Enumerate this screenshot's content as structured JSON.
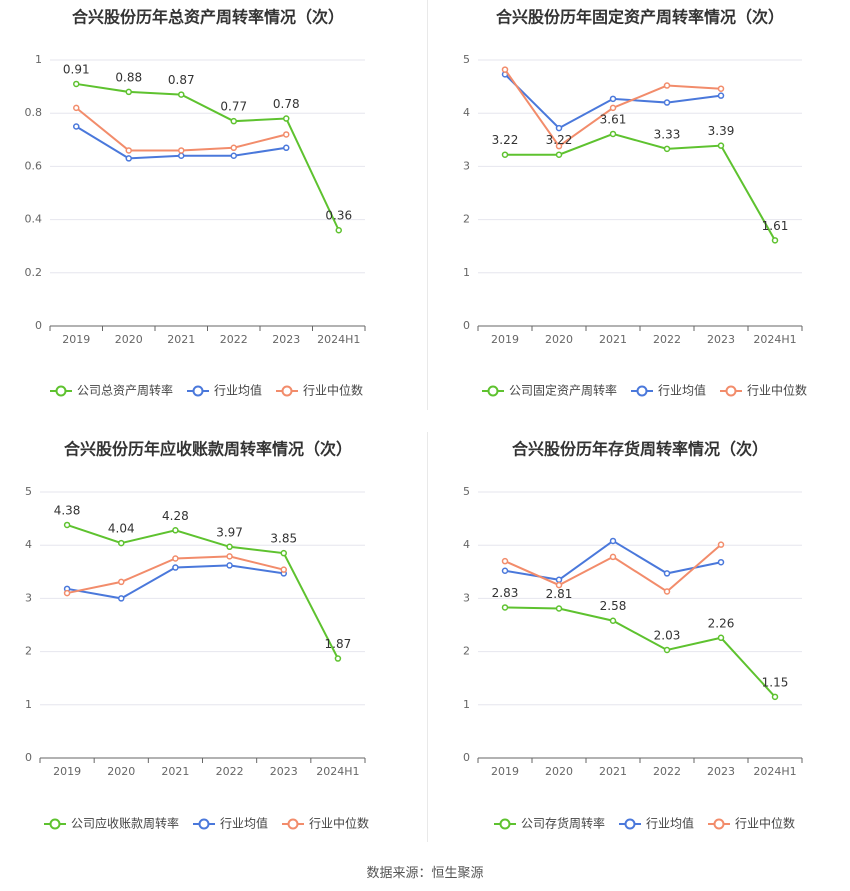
{
  "source_label": "数据来源：恒生聚源",
  "colors": {
    "company": "#5ec22f",
    "avg": "#4a78db",
    "median": "#f28c6b"
  },
  "chart_data": [
    {
      "type": "line",
      "title": "合兴股份历年总资产周转率情况（次）",
      "categories": [
        "2019",
        "2020",
        "2021",
        "2022",
        "2023",
        "2024H1"
      ],
      "ylim": [
        0,
        1
      ],
      "yticks": [
        "0",
        "0.2",
        "0.4",
        "0.6",
        "0.8",
        "1"
      ],
      "ytick_values": [
        0,
        0.2,
        0.4,
        0.6,
        0.8,
        1
      ],
      "series": [
        {
          "name": "公司总资产周转率",
          "role": "company",
          "values": [
            0.91,
            0.88,
            0.87,
            0.77,
            0.78,
            0.36
          ],
          "labels": [
            "0.91",
            "0.88",
            "0.87",
            "0.77",
            "0.78",
            "0.36"
          ]
        },
        {
          "name": "行业均值",
          "role": "avg",
          "values": [
            0.75,
            0.63,
            0.64,
            0.64,
            0.67,
            null
          ]
        },
        {
          "name": "行业中位数",
          "role": "median",
          "values": [
            0.82,
            0.66,
            0.66,
            0.67,
            0.72,
            null
          ]
        }
      ]
    },
    {
      "type": "line",
      "title": "合兴股份历年固定资产周转率情况（次）",
      "categories": [
        "2019",
        "2020",
        "2021",
        "2022",
        "2023",
        "2024H1"
      ],
      "ylim": [
        0,
        5
      ],
      "yticks": [
        "0",
        "1",
        "2",
        "3",
        "4",
        "5"
      ],
      "ytick_values": [
        0,
        1,
        2,
        3,
        4,
        5
      ],
      "series": [
        {
          "name": "公司固定资产周转率",
          "role": "company",
          "values": [
            3.22,
            3.22,
            3.61,
            3.33,
            3.39,
            1.61
          ],
          "labels": [
            "3.22",
            "3.22",
            "3.61",
            "3.33",
            "3.39",
            "1.61"
          ]
        },
        {
          "name": "行业均值",
          "role": "avg",
          "values": [
            4.73,
            3.72,
            4.27,
            4.2,
            4.33,
            null
          ]
        },
        {
          "name": "行业中位数",
          "role": "median",
          "values": [
            4.82,
            3.38,
            4.1,
            4.52,
            4.46,
            null
          ]
        }
      ]
    },
    {
      "type": "line",
      "title": "合兴股份历年应收账款周转率情况（次）",
      "categories": [
        "2019",
        "2020",
        "2021",
        "2022",
        "2023",
        "2024H1"
      ],
      "ylim": [
        0,
        5
      ],
      "yticks": [
        "0",
        "1",
        "2",
        "3",
        "4",
        "5"
      ],
      "ytick_values": [
        0,
        1,
        2,
        3,
        4,
        5
      ],
      "series": [
        {
          "name": "公司应收账款周转率",
          "role": "company",
          "values": [
            4.38,
            4.04,
            4.28,
            3.97,
            3.85,
            1.87
          ],
          "labels": [
            "4.38",
            "4.04",
            "4.28",
            "3.97",
            "3.85",
            "1.87"
          ]
        },
        {
          "name": "行业均值",
          "role": "avg",
          "values": [
            3.18,
            3.0,
            3.58,
            3.62,
            3.47,
            null
          ]
        },
        {
          "name": "行业中位数",
          "role": "median",
          "values": [
            3.1,
            3.31,
            3.75,
            3.79,
            3.54,
            null
          ]
        }
      ]
    },
    {
      "type": "line",
      "title": "合兴股份历年存货周转率情况（次）",
      "categories": [
        "2019",
        "2020",
        "2021",
        "2022",
        "2023",
        "2024H1"
      ],
      "ylim": [
        0,
        5
      ],
      "yticks": [
        "0",
        "1",
        "2",
        "3",
        "4",
        "5"
      ],
      "ytick_values": [
        0,
        1,
        2,
        3,
        4,
        5
      ],
      "series": [
        {
          "name": "公司存货周转率",
          "role": "company",
          "values": [
            2.83,
            2.81,
            2.58,
            2.03,
            2.26,
            1.15
          ],
          "labels": [
            "2.83",
            "2.81",
            "2.58",
            "2.03",
            "2.26",
            "1.15"
          ]
        },
        {
          "name": "行业均值",
          "role": "avg",
          "values": [
            3.52,
            3.35,
            4.08,
            3.47,
            3.68,
            null
          ]
        },
        {
          "name": "行业中位数",
          "role": "median",
          "values": [
            3.7,
            3.25,
            3.78,
            3.13,
            4.01,
            null
          ]
        }
      ]
    }
  ]
}
